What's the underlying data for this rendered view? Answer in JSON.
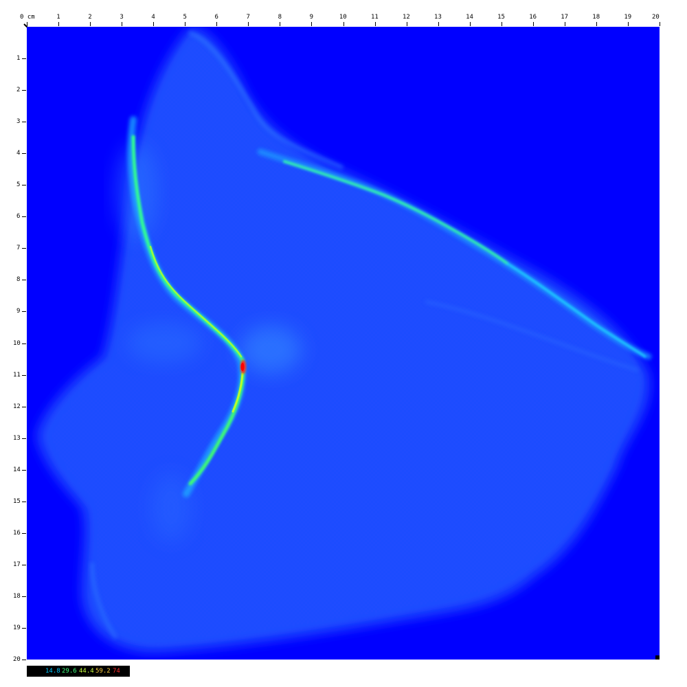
{
  "ruler": {
    "unit": "cm",
    "top_labels": [
      "0 cm",
      "1",
      "2",
      "3",
      "4",
      "5",
      "6",
      "7",
      "8",
      "9",
      "10",
      "11",
      "12",
      "13",
      "14",
      "15",
      "16",
      "17",
      "18",
      "19",
      "20"
    ],
    "left_labels": [
      "1",
      "2",
      "3",
      "4",
      "5",
      "6",
      "7",
      "8",
      "9",
      "10",
      "11",
      "12",
      "13",
      "14",
      "15",
      "16",
      "17",
      "18",
      "19",
      "20"
    ]
  },
  "heatmap": {
    "background": "#0000ff",
    "colormap": [
      "#0000ff",
      "#00c8ff",
      "#00ff80",
      "#c8ff00",
      "#ff0000"
    ],
    "max_value": 74
  },
  "legend": {
    "values": [
      {
        "text": "14.8",
        "color": "#00c8ff"
      },
      {
        "text": "29.6",
        "color": "#40ff80"
      },
      {
        "text": "44.4",
        "color": "#c8ff40"
      },
      {
        "text": "59.2",
        "color": "#ffd040"
      },
      {
        "text": "74",
        "color": "#ff3030"
      }
    ]
  }
}
